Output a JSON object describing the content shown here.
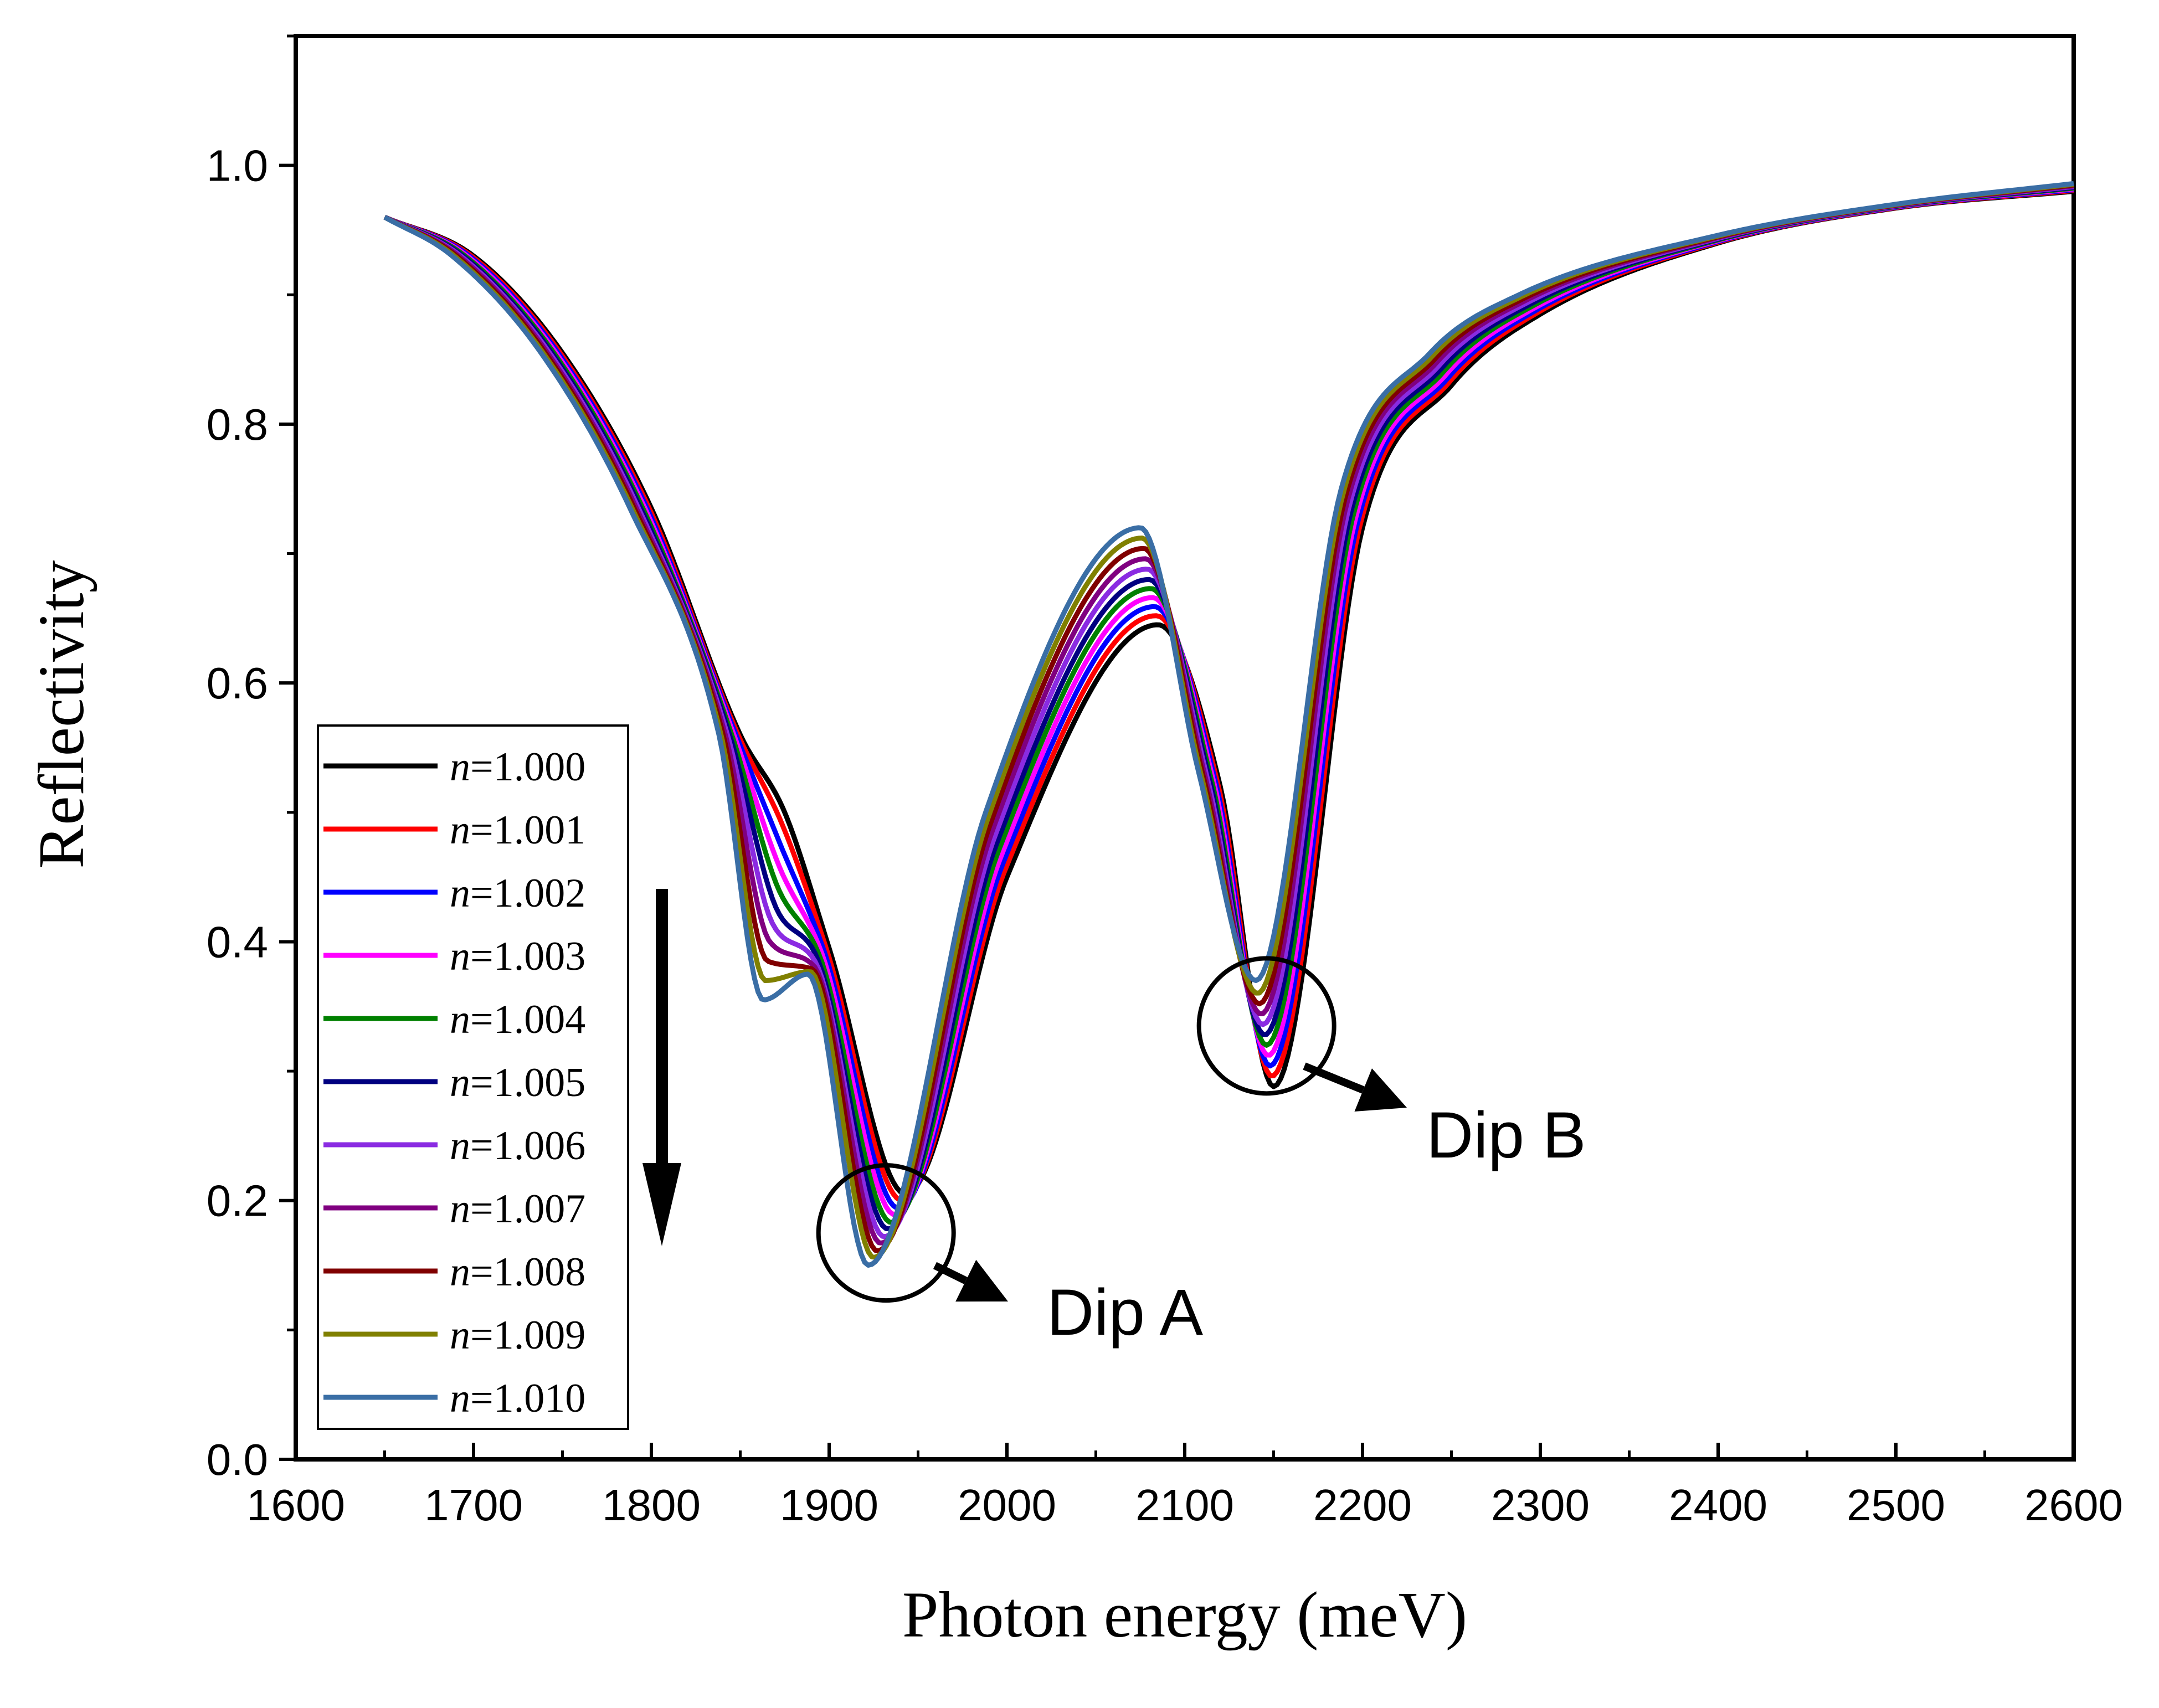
{
  "chart_data": {
    "type": "line",
    "title": "",
    "xlabel": "Photon energy (meV)",
    "ylabel": "Reflectivity",
    "xlim": [
      1600,
      2600
    ],
    "ylim": [
      0.0,
      1.1
    ],
    "x_ticks": [
      1600,
      1700,
      1800,
      1900,
      2000,
      2100,
      2200,
      2300,
      2400,
      2500,
      2600
    ],
    "x_tick_labels": [
      "1600",
      "1700",
      "1800",
      "1900",
      "2000",
      "2100",
      "2200",
      "2300",
      "2400",
      "2500",
      "2600"
    ],
    "y_ticks": [
      0.0,
      0.2,
      0.4,
      0.6,
      0.8,
      1.0
    ],
    "y_tick_labels": [
      "0.0",
      "0.2",
      "0.4",
      "0.6",
      "0.8",
      "1.0"
    ],
    "grid": false,
    "legend_position": "bottom-left",
    "series": [
      {
        "name": "n=1.000",
        "italic": "n",
        "rest": "=1.000",
        "color": "#000000",
        "dipA": [
          1943,
          0.205
        ],
        "peak": [
          2085,
          0.645
        ],
        "dipB": [
          2150,
          0.288
        ],
        "shoulder": 0.5
      },
      {
        "name": "n=1.001",
        "italic": "n",
        "rest": "=1.001",
        "color": "#ff0000",
        "dipA": [
          1941,
          0.2
        ],
        "peak": [
          2084,
          0.652
        ],
        "dipB": [
          2149,
          0.296
        ],
        "shoulder": 0.49
      },
      {
        "name": "n=1.002",
        "italic": "n",
        "rest": "=1.002",
        "color": "#0000ff",
        "dipA": [
          1939,
          0.194
        ],
        "peak": [
          2083,
          0.659
        ],
        "dipB": [
          2148,
          0.304
        ],
        "shoulder": 0.475
      },
      {
        "name": "n=1.003",
        "italic": "n",
        "rest": "=1.003",
        "color": "#ff00ff",
        "dipA": [
          1937,
          0.189
        ],
        "peak": [
          2082,
          0.666
        ],
        "dipB": [
          2147,
          0.312
        ],
        "shoulder": 0.46
      },
      {
        "name": "n=1.004",
        "italic": "n",
        "rest": "=1.004",
        "color": "#008000",
        "dipA": [
          1935,
          0.183
        ],
        "peak": [
          2081,
          0.673
        ],
        "dipB": [
          2146,
          0.32
        ],
        "shoulder": 0.445
      },
      {
        "name": "n=1.005",
        "italic": "n",
        "rest": "=1.005",
        "color": "#000080",
        "dipA": [
          1933,
          0.178
        ],
        "peak": [
          2080,
          0.68
        ],
        "dipB": [
          2145,
          0.328
        ],
        "shoulder": 0.43
      },
      {
        "name": "n=1.006",
        "italic": "n",
        "rest": "=1.006",
        "color": "#8a2be2",
        "dipA": [
          1931,
          0.172
        ],
        "peak": [
          2079,
          0.688
        ],
        "dipB": [
          2144,
          0.336
        ],
        "shoulder": 0.415
      },
      {
        "name": "n=1.007",
        "italic": "n",
        "rest": "=1.007",
        "color": "#800080",
        "dipA": [
          1929,
          0.167
        ],
        "peak": [
          2078,
          0.696
        ],
        "dipB": [
          2143,
          0.344
        ],
        "shoulder": 0.4
      },
      {
        "name": "n=1.008",
        "italic": "n",
        "rest": "=1.008",
        "color": "#800000",
        "dipA": [
          1927,
          0.161
        ],
        "peak": [
          2077,
          0.704
        ],
        "dipB": [
          2142,
          0.352
        ],
        "shoulder": 0.385
      },
      {
        "name": "n=1.009",
        "italic": "n",
        "rest": "=1.009",
        "color": "#808000",
        "dipA": [
          1925,
          0.156
        ],
        "peak": [
          2076,
          0.712
        ],
        "dipB": [
          2141,
          0.36
        ],
        "shoulder": 0.37
      },
      {
        "name": "n=1.010",
        "italic": "n",
        "rest": "=1.010",
        "color": "#3a6ea5",
        "dipA": [
          1922,
          0.15
        ],
        "peak": [
          2075,
          0.72
        ],
        "dipB": [
          2140,
          0.37
        ],
        "shoulder": 0.355
      }
    ],
    "annotations": [
      {
        "text": "Dip A",
        "target": [
          1932,
          0.175
        ]
      },
      {
        "text": "Dip B",
        "target": [
          2146,
          0.335
        ]
      }
    ]
  }
}
